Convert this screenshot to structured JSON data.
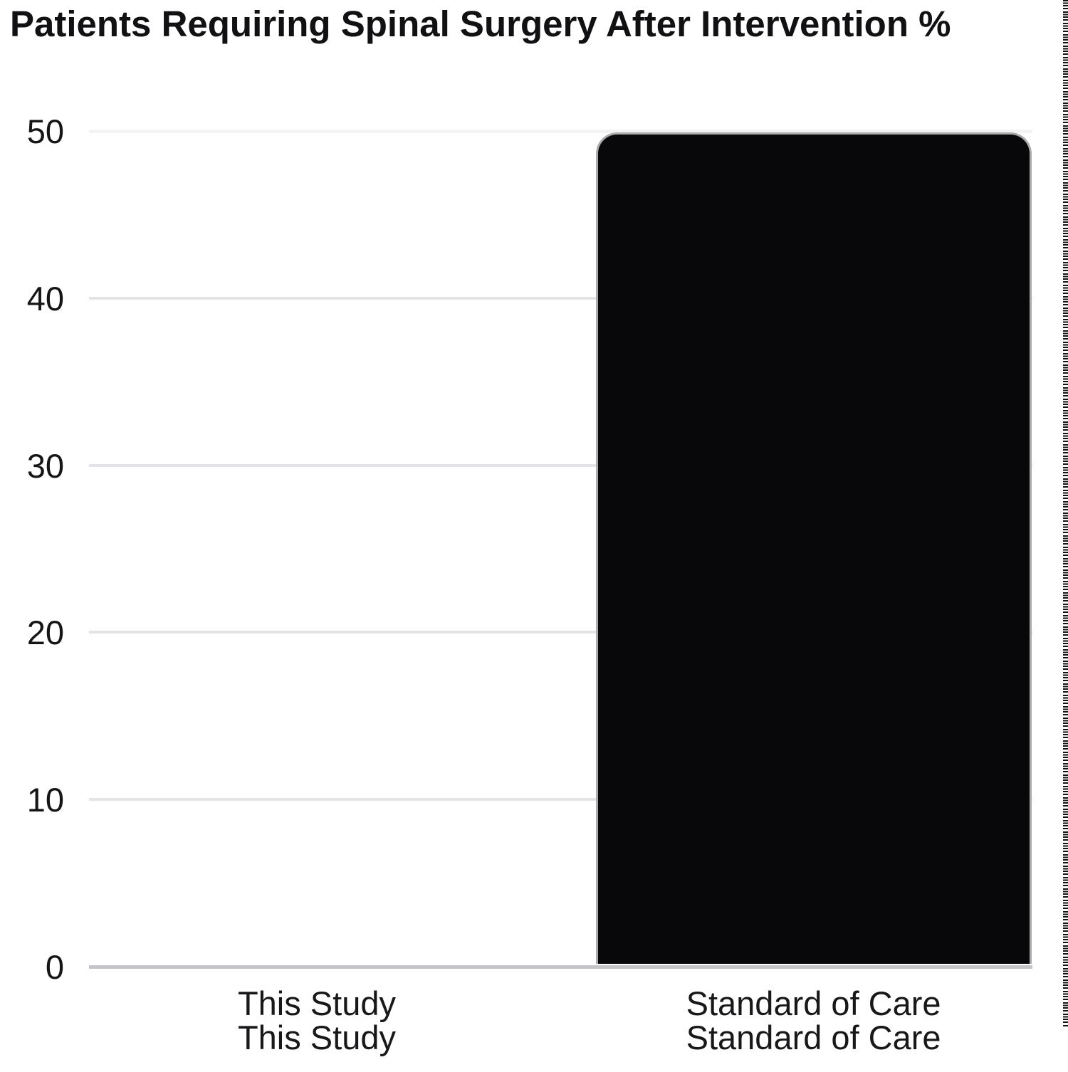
{
  "title": "Patients Requiring Spinal Surgery After Intervention %",
  "chart_data": {
    "type": "bar",
    "categories": [
      "This Study",
      "Standard of Care"
    ],
    "values": [
      0,
      50
    ],
    "title": "Patients Requiring Spinal Surgery After Intervention %",
    "xlabel": "",
    "ylabel": "",
    "ylim": [
      0,
      50
    ],
    "yticks": [
      0,
      10,
      20,
      30,
      40,
      50
    ],
    "grid": true,
    "legend": "none"
  },
  "colors": {
    "background": "#ffffff",
    "bar_fill": "#08080a",
    "bar_stroke": "#ababab",
    "gridline": "#e4e4e8",
    "gridline_top": "#f3f3f5",
    "gridline_zero": "#c5c5c9",
    "text": "#151518",
    "edge_dashes": "#141414"
  }
}
